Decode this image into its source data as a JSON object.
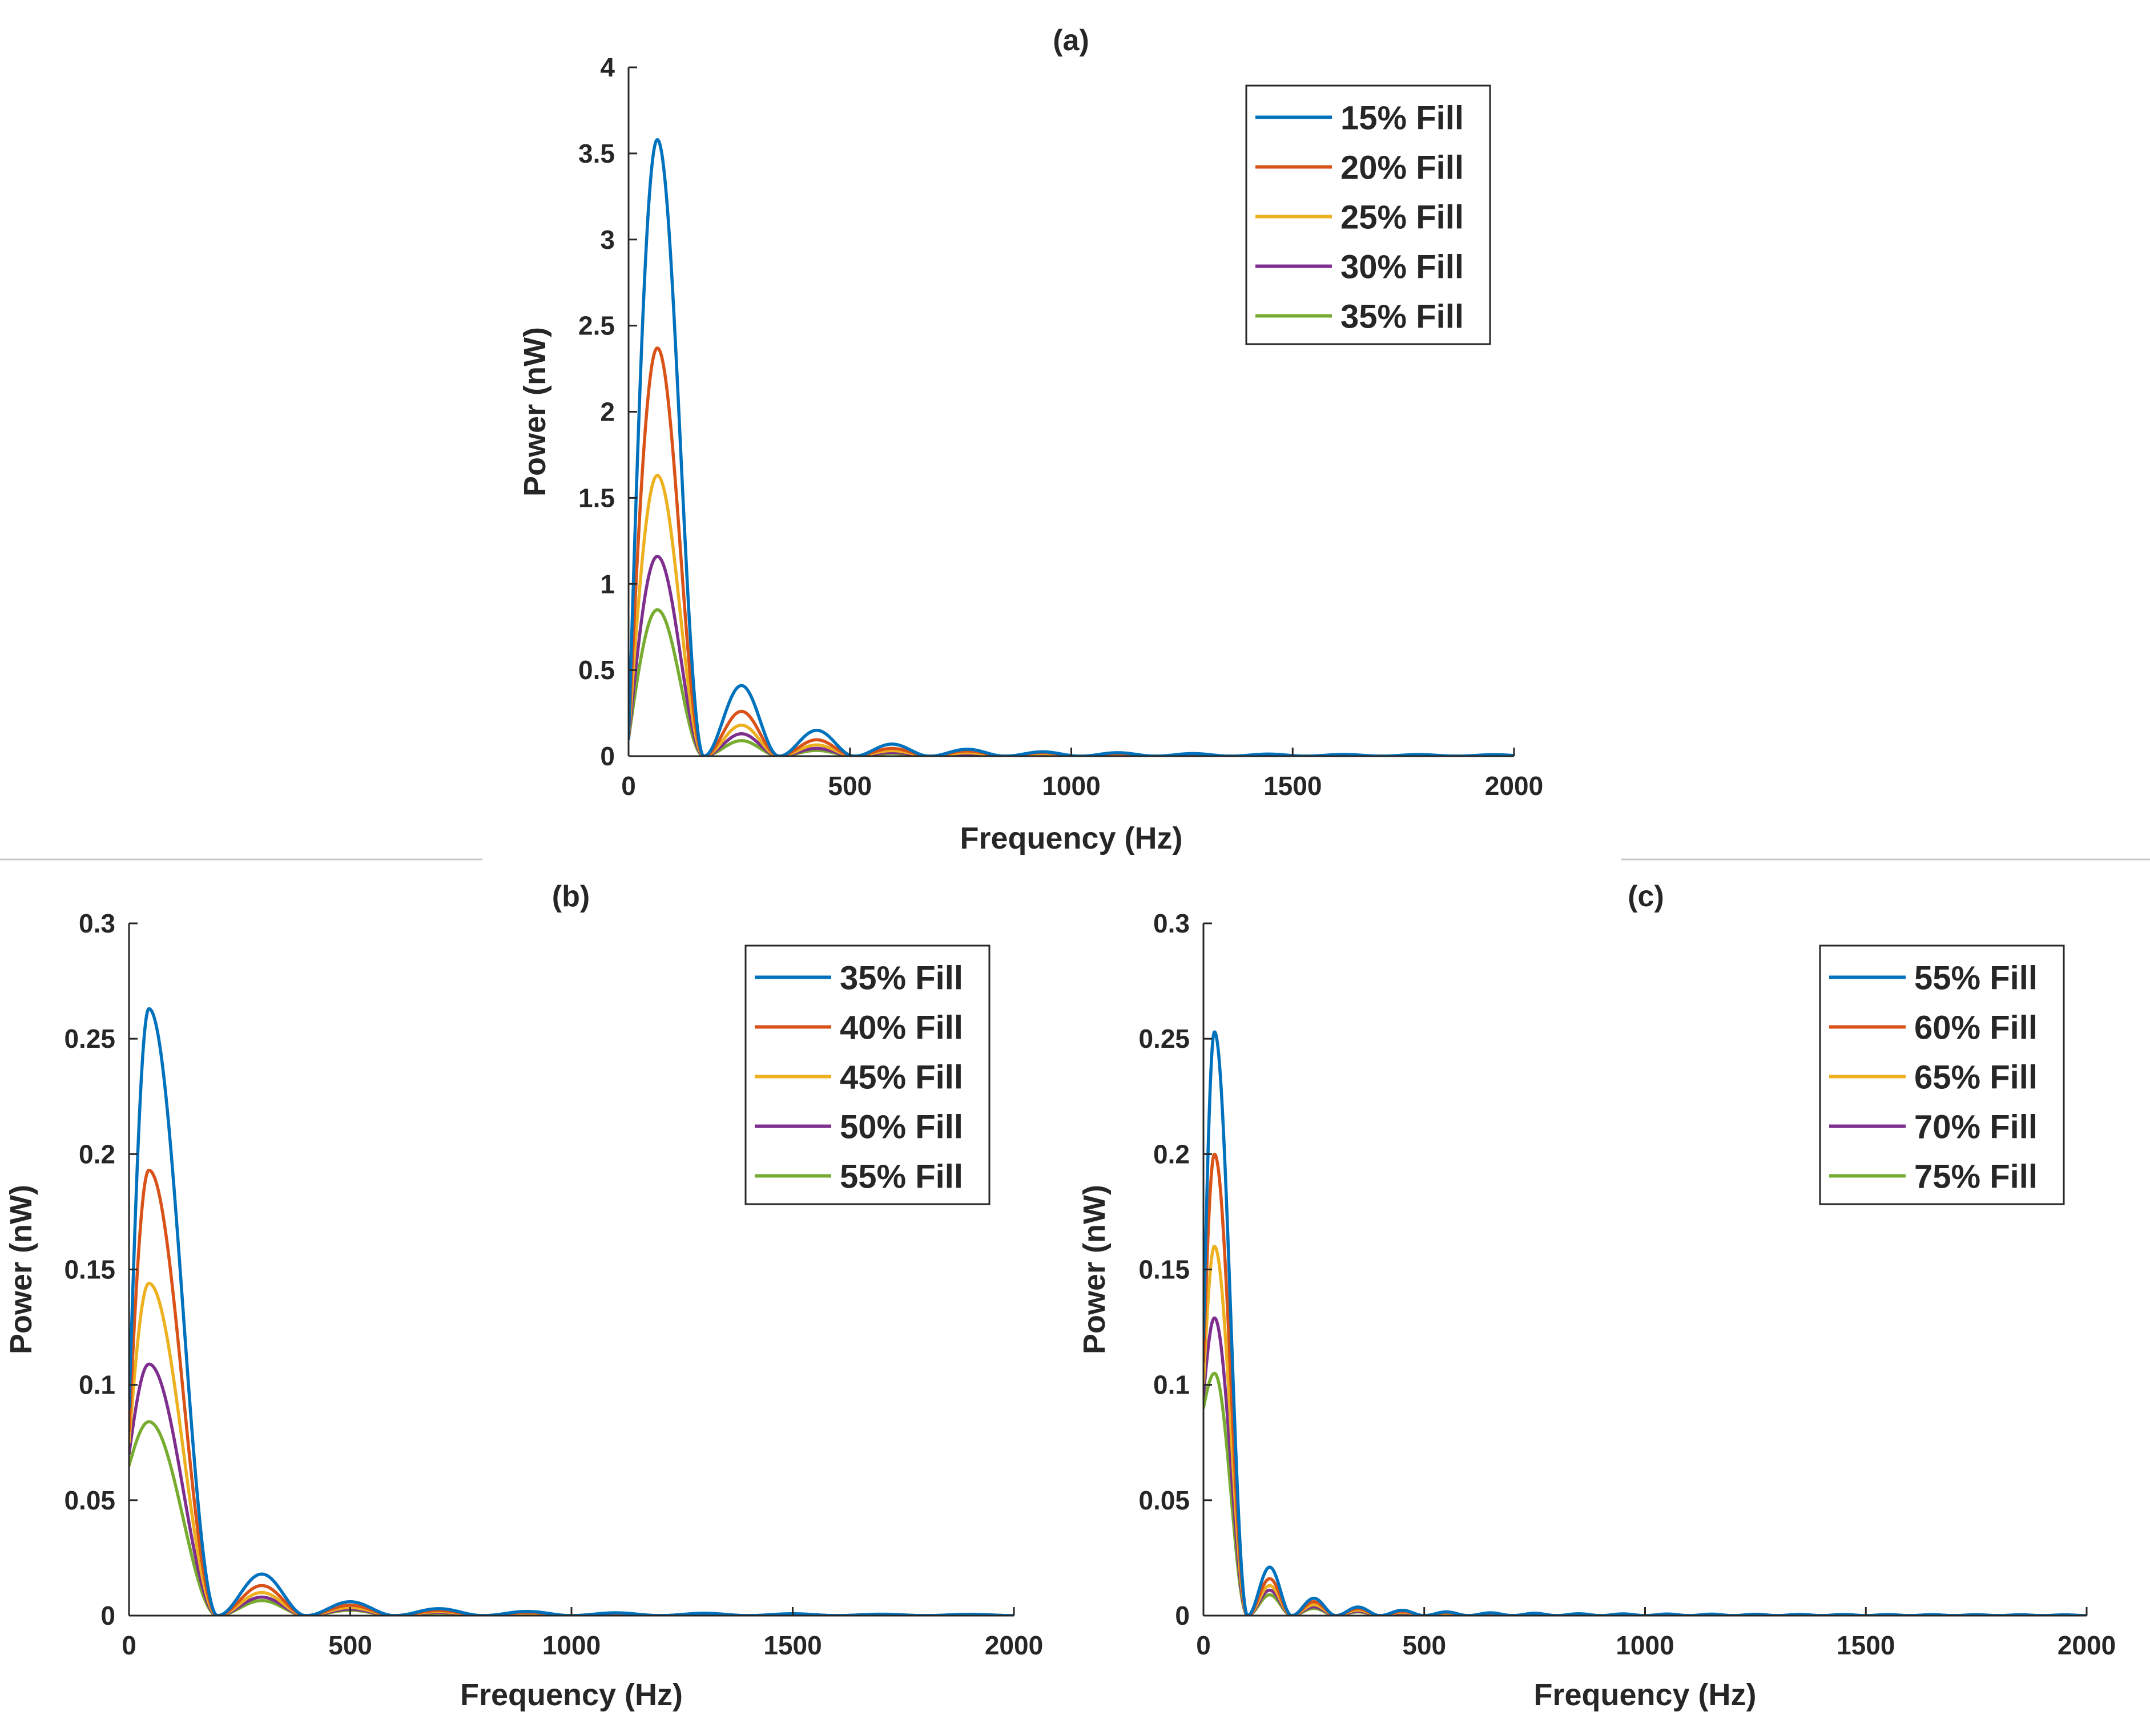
{
  "colors": {
    "series": [
      "#0072BD",
      "#D95319",
      "#EDB120",
      "#7E2F8E",
      "#77AC30"
    ],
    "axis": "#262626",
    "divider": "#C8C8C8",
    "background": "#FFFFFF"
  },
  "chart_data": [
    {
      "id": "a",
      "type": "line",
      "title": "(a)",
      "xlabel": "Frequency (Hz)",
      "ylabel": "Power (nW)",
      "xlim": [
        0,
        2000
      ],
      "ylim": [
        0,
        4
      ],
      "xticks": [
        0,
        500,
        1000,
        1500,
        2000
      ],
      "xtick_labels": [
        "0",
        "500",
        "1000",
        "1500",
        "2000"
      ],
      "yticks": [
        0,
        0.5,
        1,
        1.5,
        2,
        2.5,
        3,
        3.5,
        4
      ],
      "ytick_labels": [
        "0",
        "0.5",
        "1",
        "1.5",
        "2",
        "2.5",
        "3",
        "3.5",
        "4"
      ],
      "legend_position": "top-right",
      "grid": false,
      "peak_frequency_hz": 65,
      "first_null_hz": 170,
      "side_lobe_spacing_hz": 170,
      "series": [
        {
          "name": "15% Fill",
          "peak": 3.58,
          "dc_value": 0.1,
          "side_lobes": [
            0.41,
            0.15,
            0.07,
            0.04,
            0.025,
            0.02,
            0.015,
            0.012,
            0.01
          ]
        },
        {
          "name": "20% Fill",
          "peak": 2.37,
          "dc_value": 0.1,
          "side_lobes": [
            0.26,
            0.095,
            0.045,
            0.03,
            0.02,
            0.015,
            0.012,
            0.01,
            0.008
          ]
        },
        {
          "name": "25% Fill",
          "peak": 1.63,
          "dc_value": 0.1,
          "side_lobes": [
            0.18,
            0.065,
            0.032,
            0.02,
            0.015,
            0.01,
            0.008,
            0.007,
            0.006
          ]
        },
        {
          "name": "30% Fill",
          "peak": 1.16,
          "dc_value": 0.1,
          "side_lobes": [
            0.13,
            0.045,
            0.022,
            0.014,
            0.01,
            0.008,
            0.006,
            0.005,
            0.004
          ]
        },
        {
          "name": "35% Fill",
          "peak": 0.85,
          "dc_value": 0.1,
          "side_lobes": [
            0.09,
            0.033,
            0.016,
            0.01,
            0.008,
            0.006,
            0.005,
            0.004,
            0.003
          ]
        }
      ]
    },
    {
      "id": "b",
      "type": "line",
      "title": "(b)",
      "xlabel": "Frequency (Hz)",
      "ylabel": "Power (nW)",
      "xlim": [
        0,
        2000
      ],
      "ylim": [
        0,
        0.3
      ],
      "xticks": [
        0,
        500,
        1000,
        1500,
        2000
      ],
      "xtick_labels": [
        "0",
        "500",
        "1000",
        "1500",
        "2000"
      ],
      "yticks": [
        0,
        0.05,
        0.1,
        0.15,
        0.2,
        0.25,
        0.3
      ],
      "ytick_labels": [
        "0",
        "0.05",
        "0.1",
        "0.15",
        "0.2",
        "0.25",
        "0.3"
      ],
      "legend_position": "top-right",
      "grid": false,
      "peak_frequency_hz": 45,
      "first_null_hz": 200,
      "side_lobe_spacing_hz": 200,
      "series": [
        {
          "name": "35% Fill",
          "peak": 0.263,
          "dc_value": 0.09,
          "side_lobes": [
            0.018,
            0.006,
            0.003,
            0.0018,
            0.0012,
            0.001,
            0.0008,
            0.0006
          ]
        },
        {
          "name": "40% Fill",
          "peak": 0.193,
          "dc_value": 0.08,
          "side_lobes": [
            0.013,
            0.0045,
            0.0022,
            0.0014,
            0.001,
            0.0008,
            0.0006,
            0.0005
          ]
        },
        {
          "name": "45% Fill",
          "peak": 0.144,
          "dc_value": 0.075,
          "side_lobes": [
            0.01,
            0.0035,
            0.0017,
            0.0011,
            0.0008,
            0.0006,
            0.0005,
            0.0004
          ]
        },
        {
          "name": "50% Fill",
          "peak": 0.109,
          "dc_value": 0.07,
          "side_lobes": [
            0.008,
            0.0028,
            0.0014,
            0.0009,
            0.0006,
            0.0005,
            0.0004,
            0.0003
          ]
        },
        {
          "name": "55% Fill",
          "peak": 0.084,
          "dc_value": 0.065,
          "side_lobes": [
            0.0065,
            0.0023,
            0.0011,
            0.0007,
            0.0005,
            0.0004,
            0.0003,
            0.0002
          ]
        }
      ]
    },
    {
      "id": "c",
      "type": "line",
      "title": "(c)",
      "xlabel": "Frequency (Hz)",
      "ylabel": "Power (nW)",
      "xlim": [
        0,
        2000
      ],
      "ylim": [
        0,
        0.3
      ],
      "xticks": [
        0,
        500,
        1000,
        1500,
        2000
      ],
      "xtick_labels": [
        "0",
        "500",
        "1000",
        "1500",
        "2000"
      ],
      "yticks": [
        0,
        0.05,
        0.1,
        0.15,
        0.2,
        0.25,
        0.3
      ],
      "ytick_labels": [
        "0",
        "0.05",
        "0.1",
        "0.15",
        "0.2",
        "0.25",
        "0.3"
      ],
      "legend_position": "top-right",
      "grid": false,
      "peak_frequency_hz": 25,
      "first_null_hz": 100,
      "side_lobe_spacing_hz": 100,
      "series": [
        {
          "name": "55% Fill",
          "peak": 0.253,
          "dc_value": 0.12,
          "side_lobes": [
            0.021,
            0.0075,
            0.0037,
            0.0023,
            0.0016,
            0.0012,
            0.001,
            0.0008
          ]
        },
        {
          "name": "60% Fill",
          "peak": 0.2,
          "dc_value": 0.11,
          "side_lobes": [
            0.016,
            0.006,
            0.003,
            0.0018,
            0.0013,
            0.001,
            0.0008,
            0.0006
          ]
        },
        {
          "name": "65% Fill",
          "peak": 0.16,
          "dc_value": 0.1,
          "side_lobes": [
            0.013,
            0.0047,
            0.0024,
            0.0015,
            0.001,
            0.0008,
            0.0006,
            0.0005
          ]
        },
        {
          "name": "70% Fill",
          "peak": 0.129,
          "dc_value": 0.095,
          "side_lobes": [
            0.011,
            0.0038,
            0.0019,
            0.0012,
            0.0008,
            0.0006,
            0.0005,
            0.0004
          ]
        },
        {
          "name": "75% Fill",
          "peak": 0.105,
          "dc_value": 0.09,
          "side_lobes": [
            0.009,
            0.0031,
            0.0016,
            0.001,
            0.0007,
            0.0005,
            0.0004,
            0.0003
          ]
        }
      ]
    }
  ]
}
